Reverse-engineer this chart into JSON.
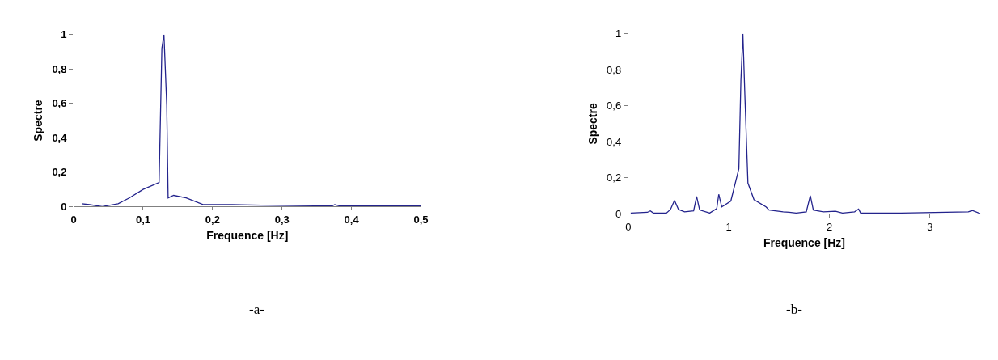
{
  "chart_data": [
    {
      "type": "line",
      "xlabel": "Frequence [Hz]",
      "ylabel": "Spectre",
      "annotations": [
        "-a-"
      ],
      "series": [
        {
          "color": "#23238c",
          "x": [
            0.012,
            0.023,
            0.041,
            0.064,
            0.08,
            0.1,
            0.123,
            0.127,
            0.13,
            0.134,
            0.136,
            0.144,
            0.162,
            0.187,
            0.228,
            0.27,
            0.372,
            0.376,
            0.382,
            0.433,
            0.5
          ],
          "values": [
            0.016,
            0.011,
            0,
            0.016,
            0.05,
            0.1,
            0.14,
            0.92,
            1,
            0.59,
            0.05,
            0.065,
            0.05,
            0.011,
            0.011,
            0.008,
            0.003,
            0.011,
            0.005,
            0.003,
            0.003
          ]
        }
      ],
      "xlim": [
        0,
        0.5
      ],
      "ylim": [
        0,
        1
      ],
      "xticks": [
        0,
        {
          "value": 0.1,
          "label": "0,1"
        },
        {
          "value": 0.2,
          "label": "0,2"
        },
        {
          "value": 0.3,
          "label": "0,3"
        },
        {
          "value": 0.4,
          "label": "0,4"
        },
        {
          "value": 0.5,
          "label": "0,5"
        }
      ],
      "yticks": [
        0,
        {
          "value": 0.2,
          "label": "0,2"
        },
        {
          "value": 0.4,
          "label": "0,4"
        },
        {
          "value": 0.6,
          "label": "0,6"
        },
        {
          "value": 0.8,
          "label": "0,8"
        },
        1
      ],
      "marker": "none",
      "line_style": "solid"
    },
    {
      "type": "line",
      "xlabel": "Frequence [Hz]",
      "ylabel": "Spectre",
      "annotations": [
        "-b-"
      ],
      "series": [
        {
          "color": "#23238c",
          "x": [
            0.025,
            0.19,
            0.22,
            0.25,
            0.38,
            0.42,
            0.46,
            0.5,
            0.56,
            0.65,
            0.68,
            0.71,
            0.81,
            0.88,
            0.9,
            0.93,
            1.02,
            1.1,
            1.12,
            1.14,
            1.16,
            1.19,
            1.25,
            1.37,
            1.4,
            1.54,
            1.6,
            1.67,
            1.77,
            1.81,
            1.84,
            1.94,
            2.06,
            2.13,
            2.25,
            2.29,
            2.31,
            2.71,
            3.38,
            3.42,
            3.5
          ],
          "values": [
            0.003,
            0.007,
            0.015,
            0.003,
            0.003,
            0.023,
            0.073,
            0.023,
            0.01,
            0.015,
            0.095,
            0.02,
            0.003,
            0.028,
            0.107,
            0.037,
            0.07,
            0.25,
            0.74,
            1,
            0.65,
            0.17,
            0.078,
            0.037,
            0.02,
            0.01,
            0.007,
            0.003,
            0.01,
            0.1,
            0.02,
            0.01,
            0.013,
            0.003,
            0.01,
            0.025,
            0.003,
            0.003,
            0.01,
            0.017,
            0
          ]
        }
      ],
      "xlim": [
        0,
        3.5
      ],
      "ylim": [
        0,
        1
      ],
      "xticks": [
        0,
        1,
        2,
        3
      ],
      "yticks": [
        0,
        {
          "value": 0.2,
          "label": "0,2"
        },
        {
          "value": 0.4,
          "label": "0,4"
        },
        {
          "value": 0.6,
          "label": "0,6"
        },
        {
          "value": 0.8,
          "label": "0,8"
        },
        1
      ],
      "marker": "none",
      "line_style": "solid"
    }
  ]
}
